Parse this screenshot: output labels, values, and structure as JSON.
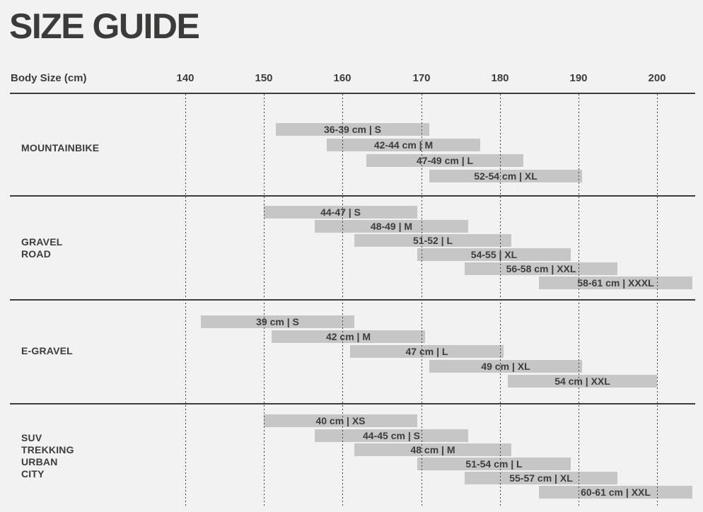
{
  "page": {
    "title": "SIZE GUIDE",
    "background_color": "#f2f2f2",
    "bar_color": "#c6c6c6",
    "text_color": "#3c3c3b"
  },
  "chart_data": {
    "type": "bar",
    "subtype": "horizontal-range-bars",
    "title": "SIZE GUIDE",
    "xlabel": "Body Size (cm)",
    "x_ticks": [
      140,
      150,
      160,
      170,
      180,
      190,
      200
    ],
    "xlim": [
      135,
      206
    ],
    "grid": "vertical-dotted",
    "legend_position": "none",
    "sections": [
      {
        "category_lines": [
          "MOUNTAINBIKE"
        ],
        "rows": [
          {
            "label": "36-39 cm | S",
            "frame_size": "36-39 cm",
            "size": "S",
            "body_from": 151.5,
            "body_to": 171
          },
          {
            "label": "42-44 cm | M",
            "frame_size": "42-44 cm",
            "size": "M",
            "body_from": 158,
            "body_to": 177.5
          },
          {
            "label": "47-49 cm | L",
            "frame_size": "47-49 cm",
            "size": "L",
            "body_from": 163,
            "body_to": 183
          },
          {
            "label": "52-54 cm | XL",
            "frame_size": "52-54 cm",
            "size": "XL",
            "body_from": 171,
            "body_to": 190.5
          }
        ]
      },
      {
        "category_lines": [
          "GRAVEL",
          "ROAD"
        ],
        "rows": [
          {
            "label": "44-47 | S",
            "frame_size": "44-47",
            "size": "S",
            "body_from": 150,
            "body_to": 169.5
          },
          {
            "label": "48-49 | M",
            "frame_size": "48-49",
            "size": "M",
            "body_from": 156.5,
            "body_to": 176
          },
          {
            "label": "51-52 | L",
            "frame_size": "51-52",
            "size": "L",
            "body_from": 161.5,
            "body_to": 181.5
          },
          {
            "label": "54-55 | XL",
            "frame_size": "54-55",
            "size": "XL",
            "body_from": 169.5,
            "body_to": 189
          },
          {
            "label": "56-58 cm | XXL",
            "frame_size": "56-58 cm",
            "size": "XXL",
            "body_from": 175.5,
            "body_to": 195
          },
          {
            "label": "58-61 cm | XXXL",
            "frame_size": "58-61 cm",
            "size": "XXXL",
            "body_from": 185,
            "body_to": 204.5
          }
        ]
      },
      {
        "category_lines": [
          "E-GRAVEL"
        ],
        "rows": [
          {
            "label": "39 cm | S",
            "frame_size": "39 cm",
            "size": "S",
            "body_from": 142,
            "body_to": 161.5
          },
          {
            "label": "42 cm | M",
            "frame_size": "42 cm",
            "size": "M",
            "body_from": 151,
            "body_to": 170.5
          },
          {
            "label": "47 cm | L",
            "frame_size": "47 cm",
            "size": "L",
            "body_from": 161,
            "body_to": 180.5
          },
          {
            "label": "49 cm | XL",
            "frame_size": "49 cm",
            "size": "XL",
            "body_from": 171,
            "body_to": 190.5
          },
          {
            "label": "54 cm | XXL",
            "frame_size": "54 cm",
            "size": "XXL",
            "body_from": 181,
            "body_to": 200
          }
        ]
      },
      {
        "category_lines": [
          "SUV",
          "TREKKING",
          "URBAN",
          "CITY"
        ],
        "rows": [
          {
            "label": "40 cm | XS",
            "frame_size": "40 cm",
            "size": "XS",
            "body_from": 150,
            "body_to": 169.5
          },
          {
            "label": "44-45 cm | S",
            "frame_size": "44-45 cm",
            "size": "S",
            "body_from": 156.5,
            "body_to": 176
          },
          {
            "label": "48 cm | M",
            "frame_size": "48 cm",
            "size": "M",
            "body_from": 161.5,
            "body_to": 181.5
          },
          {
            "label": "51-54 cm | L",
            "frame_size": "51-54 cm",
            "size": "L",
            "body_from": 169.5,
            "body_to": 189
          },
          {
            "label": "55-57 cm | XL",
            "frame_size": "55-57 cm",
            "size": "XL",
            "body_from": 175.5,
            "body_to": 195
          },
          {
            "label": "60-61 cm | XXL",
            "frame_size": "60-61 cm",
            "size": "XXL",
            "body_from": 185,
            "body_to": 204.5
          }
        ]
      }
    ]
  }
}
